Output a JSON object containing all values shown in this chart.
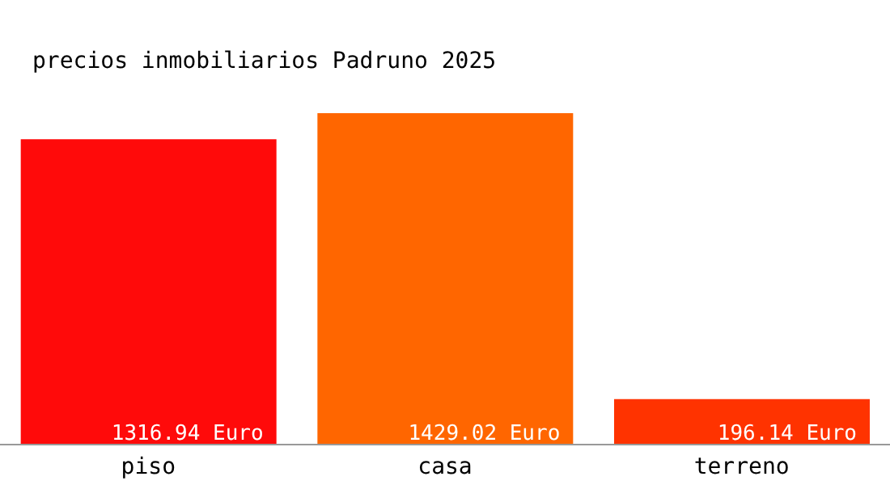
{
  "chart_data": {
    "type": "bar",
    "title": "precios inmobiliarios Padruno 2025",
    "categories": [
      "piso",
      "casa",
      "terreno"
    ],
    "values": [
      1316.94,
      1429.02,
      196.14
    ],
    "colors": [
      "#ff0a0a",
      "#ff6600",
      "#ff3300"
    ],
    "value_labels": [
      "1316.94 Euro",
      "1429.02 Euro",
      "196.14 Euro"
    ],
    "grid": false,
    "legend": false
  }
}
